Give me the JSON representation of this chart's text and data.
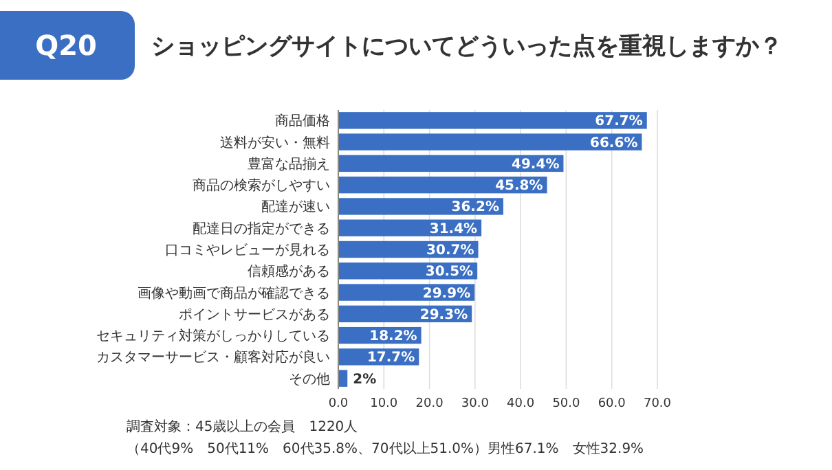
{
  "chart_data": {
    "type": "bar",
    "orientation": "horizontal",
    "title": "ショッピングサイトについてどういった点を重視しますか？",
    "categories": [
      "商品価格",
      "送料が安い・無料",
      "豊富な品揃え",
      "商品の検索がしやすい",
      "配達が速い",
      "配達日の指定ができる",
      "口コミやレビューが見れる",
      "信頼感がある",
      "画像や動画で商品が確認できる",
      "ポイントサービスがある",
      "セキュリティ対策がしっかりしている",
      "カスタマーサービス・顧客対応が良い",
      "その他"
    ],
    "values": [
      67.7,
      66.6,
      49.4,
      45.8,
      36.2,
      31.4,
      30.7,
      30.5,
      29.9,
      29.3,
      18.2,
      17.7,
      2
    ],
    "value_labels": [
      "67.7%",
      "66.6%",
      "49.4%",
      "45.8%",
      "36.2%",
      "31.4%",
      "30.7%",
      "30.5%",
      "29.9%",
      "29.3%",
      "18.2%",
      "17.7%",
      "2%"
    ],
    "color": "#3a6fc3",
    "xlim": [
      0,
      70
    ],
    "xticks": [
      {
        "value": 0,
        "label": "0.0"
      },
      {
        "value": 10,
        "label": "10.0"
      },
      {
        "value": 20,
        "label": "20.0"
      },
      {
        "value": 30,
        "label": "30.0"
      },
      {
        "value": 40,
        "label": "40.0"
      },
      {
        "value": 50,
        "label": "50.0"
      },
      {
        "value": 60,
        "label": "60.0"
      },
      {
        "value": 70,
        "label": "70.0"
      }
    ],
    "grid": "x",
    "annotations": [
      "Q20",
      "調査対象：45歳以上の会員　1220人",
      "（40代9%　50代11%　60代35.8%、70代以上51.0%）男性67.1%　女性32.9%"
    ]
  }
}
